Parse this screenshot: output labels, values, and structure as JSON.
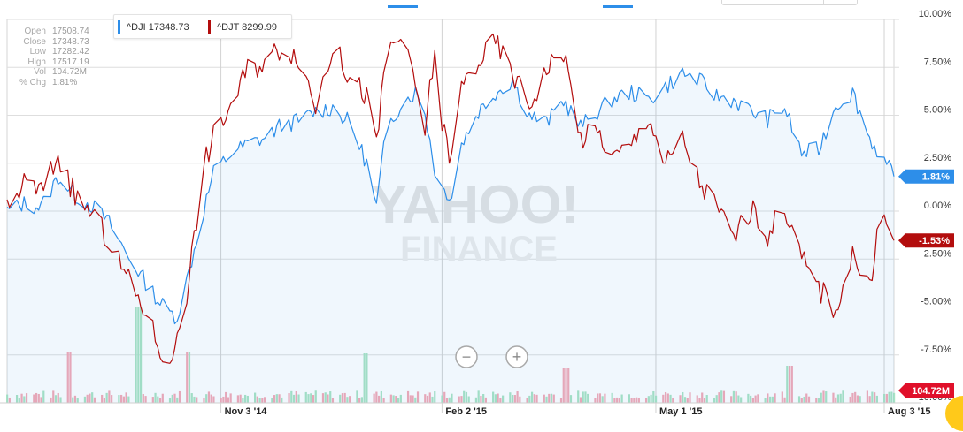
{
  "stats": [
    {
      "label": "Open",
      "value": "17508.74"
    },
    {
      "label": "Close",
      "value": "17348.73"
    },
    {
      "label": "Low",
      "value": "17282.42"
    },
    {
      "label": "High",
      "value": "17517.19"
    },
    {
      "label": "Vol",
      "value": "104.72M"
    },
    {
      "label": "% Chg",
      "value": "1.81%"
    }
  ],
  "legend": [
    {
      "label": "^DJI 17348.73",
      "color": "#2d8ee9"
    },
    {
      "label": "^DJT 8299.99",
      "color": "#b30d0d"
    }
  ],
  "watermark": {
    "line1": "YAHOO!",
    "line2": "FINANCE"
  },
  "controls": {
    "zoom_out": "−",
    "zoom_in": "+"
  },
  "colors": {
    "dji": "#2d8ee9",
    "djt": "#b30d0d",
    "vol_up": "#a9e3c4",
    "vol_down": "#f4a9b6",
    "grid": "#dcdcdc"
  },
  "chart_data": {
    "type": "line",
    "ylim": [
      -10,
      10
    ],
    "y_ticks": [
      "10.00%",
      "7.50%",
      "5.00%",
      "2.50%",
      "0.00%",
      "-2.50%",
      "-5.00%",
      "-7.50%",
      "-10.00%"
    ],
    "y_tick_values": [
      10,
      7.5,
      5,
      2.5,
      0,
      -2.5,
      -5,
      -7.5,
      -10
    ],
    "x_range": [
      "2014-08-07",
      "2015-08-07"
    ],
    "x_ticks": [
      {
        "label": "Nov 3 '14",
        "date": "2014-11-03"
      },
      {
        "label": "Feb 2 '15",
        "date": "2015-02-02"
      },
      {
        "label": "May 1 '15",
        "date": "2015-05-01"
      },
      {
        "label": "Aug 3 '15",
        "date": "2015-08-03"
      }
    ],
    "end_labels": [
      {
        "series": "^DJI",
        "text": "1.81%",
        "value": 1.81,
        "color": "#2d8ee9"
      },
      {
        "series": "^DJT",
        "text": "-1.53%",
        "value": -1.53,
        "color": "#b30d0d"
      },
      {
        "series": "Volume",
        "text": "104.72M",
        "color": "#e0102a"
      }
    ],
    "series": [
      {
        "name": "^DJI",
        "color": "#2d8ee9",
        "values": [
          [
            "2014-08-07",
            0.0
          ],
          [
            "2014-08-14",
            0.4
          ],
          [
            "2014-08-21",
            0.2
          ],
          [
            "2014-08-28",
            1.8
          ],
          [
            "2014-09-04",
            0.8
          ],
          [
            "2014-09-11",
            0.3
          ],
          [
            "2014-09-18",
            -0.6
          ],
          [
            "2014-09-25",
            -2.2
          ],
          [
            "2014-10-02",
            -3.5
          ],
          [
            "2014-10-09",
            -4.8
          ],
          [
            "2014-10-13",
            -5.3
          ],
          [
            "2014-10-16",
            -5.5
          ],
          [
            "2014-10-20",
            -3.6
          ],
          [
            "2014-10-24",
            -1.5
          ],
          [
            "2014-10-28",
            0.6
          ],
          [
            "2014-10-31",
            2.0
          ],
          [
            "2014-11-07",
            3.0
          ],
          [
            "2014-11-14",
            3.5
          ],
          [
            "2014-11-21",
            3.8
          ],
          [
            "2014-11-28",
            4.5
          ],
          [
            "2014-12-05",
            4.7
          ],
          [
            "2014-12-12",
            5.2
          ],
          [
            "2014-12-19",
            5.4
          ],
          [
            "2014-12-26",
            4.6
          ],
          [
            "2015-01-02",
            2.5
          ],
          [
            "2015-01-06",
            0.2
          ],
          [
            "2015-01-10",
            4.2
          ],
          [
            "2015-01-16",
            5.6
          ],
          [
            "2015-01-22",
            6.2
          ],
          [
            "2015-01-26",
            5.2
          ],
          [
            "2015-01-30",
            2.2
          ],
          [
            "2015-02-02",
            1.2
          ],
          [
            "2015-02-06",
            0.8
          ],
          [
            "2015-02-10",
            3.5
          ],
          [
            "2015-02-17",
            5.2
          ],
          [
            "2015-02-24",
            6.2
          ],
          [
            "2015-03-03",
            6.8
          ],
          [
            "2015-03-10",
            5.0
          ],
          [
            "2015-03-17",
            4.6
          ],
          [
            "2015-03-24",
            5.8
          ],
          [
            "2015-03-31",
            4.4
          ],
          [
            "2015-04-07",
            5.2
          ],
          [
            "2015-04-14",
            5.9
          ],
          [
            "2015-04-21",
            6.2
          ],
          [
            "2015-04-28",
            5.8
          ],
          [
            "2015-05-05",
            6.5
          ],
          [
            "2015-05-12",
            7.2
          ],
          [
            "2015-05-19",
            6.8
          ],
          [
            "2015-05-26",
            6.0
          ],
          [
            "2015-06-02",
            5.8
          ],
          [
            "2015-06-09",
            5.2
          ],
          [
            "2015-06-16",
            4.8
          ],
          [
            "2015-06-23",
            5.4
          ],
          [
            "2015-06-30",
            3.0
          ],
          [
            "2015-07-07",
            3.2
          ],
          [
            "2015-07-14",
            5.5
          ],
          [
            "2015-07-21",
            6.2
          ],
          [
            "2015-07-28",
            3.8
          ],
          [
            "2015-08-03",
            2.6
          ],
          [
            "2015-08-07",
            1.81
          ]
        ]
      },
      {
        "name": "^DJT",
        "color": "#b30d0d",
        "values": [
          [
            "2014-08-07",
            0.0
          ],
          [
            "2014-08-14",
            1.5
          ],
          [
            "2014-08-21",
            1.0
          ],
          [
            "2014-08-28",
            2.9
          ],
          [
            "2014-09-04",
            0.8
          ],
          [
            "2014-09-11",
            -0.2
          ],
          [
            "2014-09-18",
            -1.6
          ],
          [
            "2014-09-25",
            -3.4
          ],
          [
            "2014-10-02",
            -5.0
          ],
          [
            "2014-10-09",
            -7.2
          ],
          [
            "2014-10-13",
            -8.4
          ],
          [
            "2014-10-16",
            -6.2
          ],
          [
            "2014-10-20",
            -4.2
          ],
          [
            "2014-10-24",
            -0.4
          ],
          [
            "2014-10-28",
            2.8
          ],
          [
            "2014-10-31",
            3.9
          ],
          [
            "2014-11-07",
            5.5
          ],
          [
            "2014-11-14",
            7.4
          ],
          [
            "2014-11-21",
            7.8
          ],
          [
            "2014-11-28",
            8.6
          ],
          [
            "2014-12-05",
            8.1
          ],
          [
            "2014-12-12",
            5.5
          ],
          [
            "2014-12-19",
            8.6
          ],
          [
            "2014-12-26",
            7.0
          ],
          [
            "2015-01-02",
            6.0
          ],
          [
            "2015-01-06",
            3.3
          ],
          [
            "2015-01-10",
            8.4
          ],
          [
            "2015-01-16",
            9.1
          ],
          [
            "2015-01-22",
            6.5
          ],
          [
            "2015-01-26",
            4.2
          ],
          [
            "2015-01-30",
            8.4
          ],
          [
            "2015-02-02",
            4.5
          ],
          [
            "2015-02-06",
            2.6
          ],
          [
            "2015-02-10",
            6.5
          ],
          [
            "2015-02-17",
            7.8
          ],
          [
            "2015-02-24",
            8.8
          ],
          [
            "2015-03-03",
            7.2
          ],
          [
            "2015-03-10",
            5.5
          ],
          [
            "2015-03-17",
            7.4
          ],
          [
            "2015-03-24",
            8.4
          ],
          [
            "2015-03-31",
            3.8
          ],
          [
            "2015-04-07",
            4.1
          ],
          [
            "2015-04-14",
            2.8
          ],
          [
            "2015-04-21",
            3.4
          ],
          [
            "2015-04-28",
            5.0
          ],
          [
            "2015-05-05",
            2.4
          ],
          [
            "2015-05-12",
            3.8
          ],
          [
            "2015-05-19",
            1.5
          ],
          [
            "2015-05-26",
            0.2
          ],
          [
            "2015-06-02",
            -1.4
          ],
          [
            "2015-06-09",
            0.1
          ],
          [
            "2015-06-16",
            -1.2
          ],
          [
            "2015-06-23",
            0.3
          ],
          [
            "2015-06-30",
            -2.5
          ],
          [
            "2015-07-07",
            -4.0
          ],
          [
            "2015-07-14",
            -5.1
          ],
          [
            "2015-07-21",
            -2.2
          ],
          [
            "2015-07-28",
            -4.2
          ],
          [
            "2015-08-01",
            0.0
          ],
          [
            "2015-08-07",
            -1.53
          ]
        ]
      }
    ]
  }
}
